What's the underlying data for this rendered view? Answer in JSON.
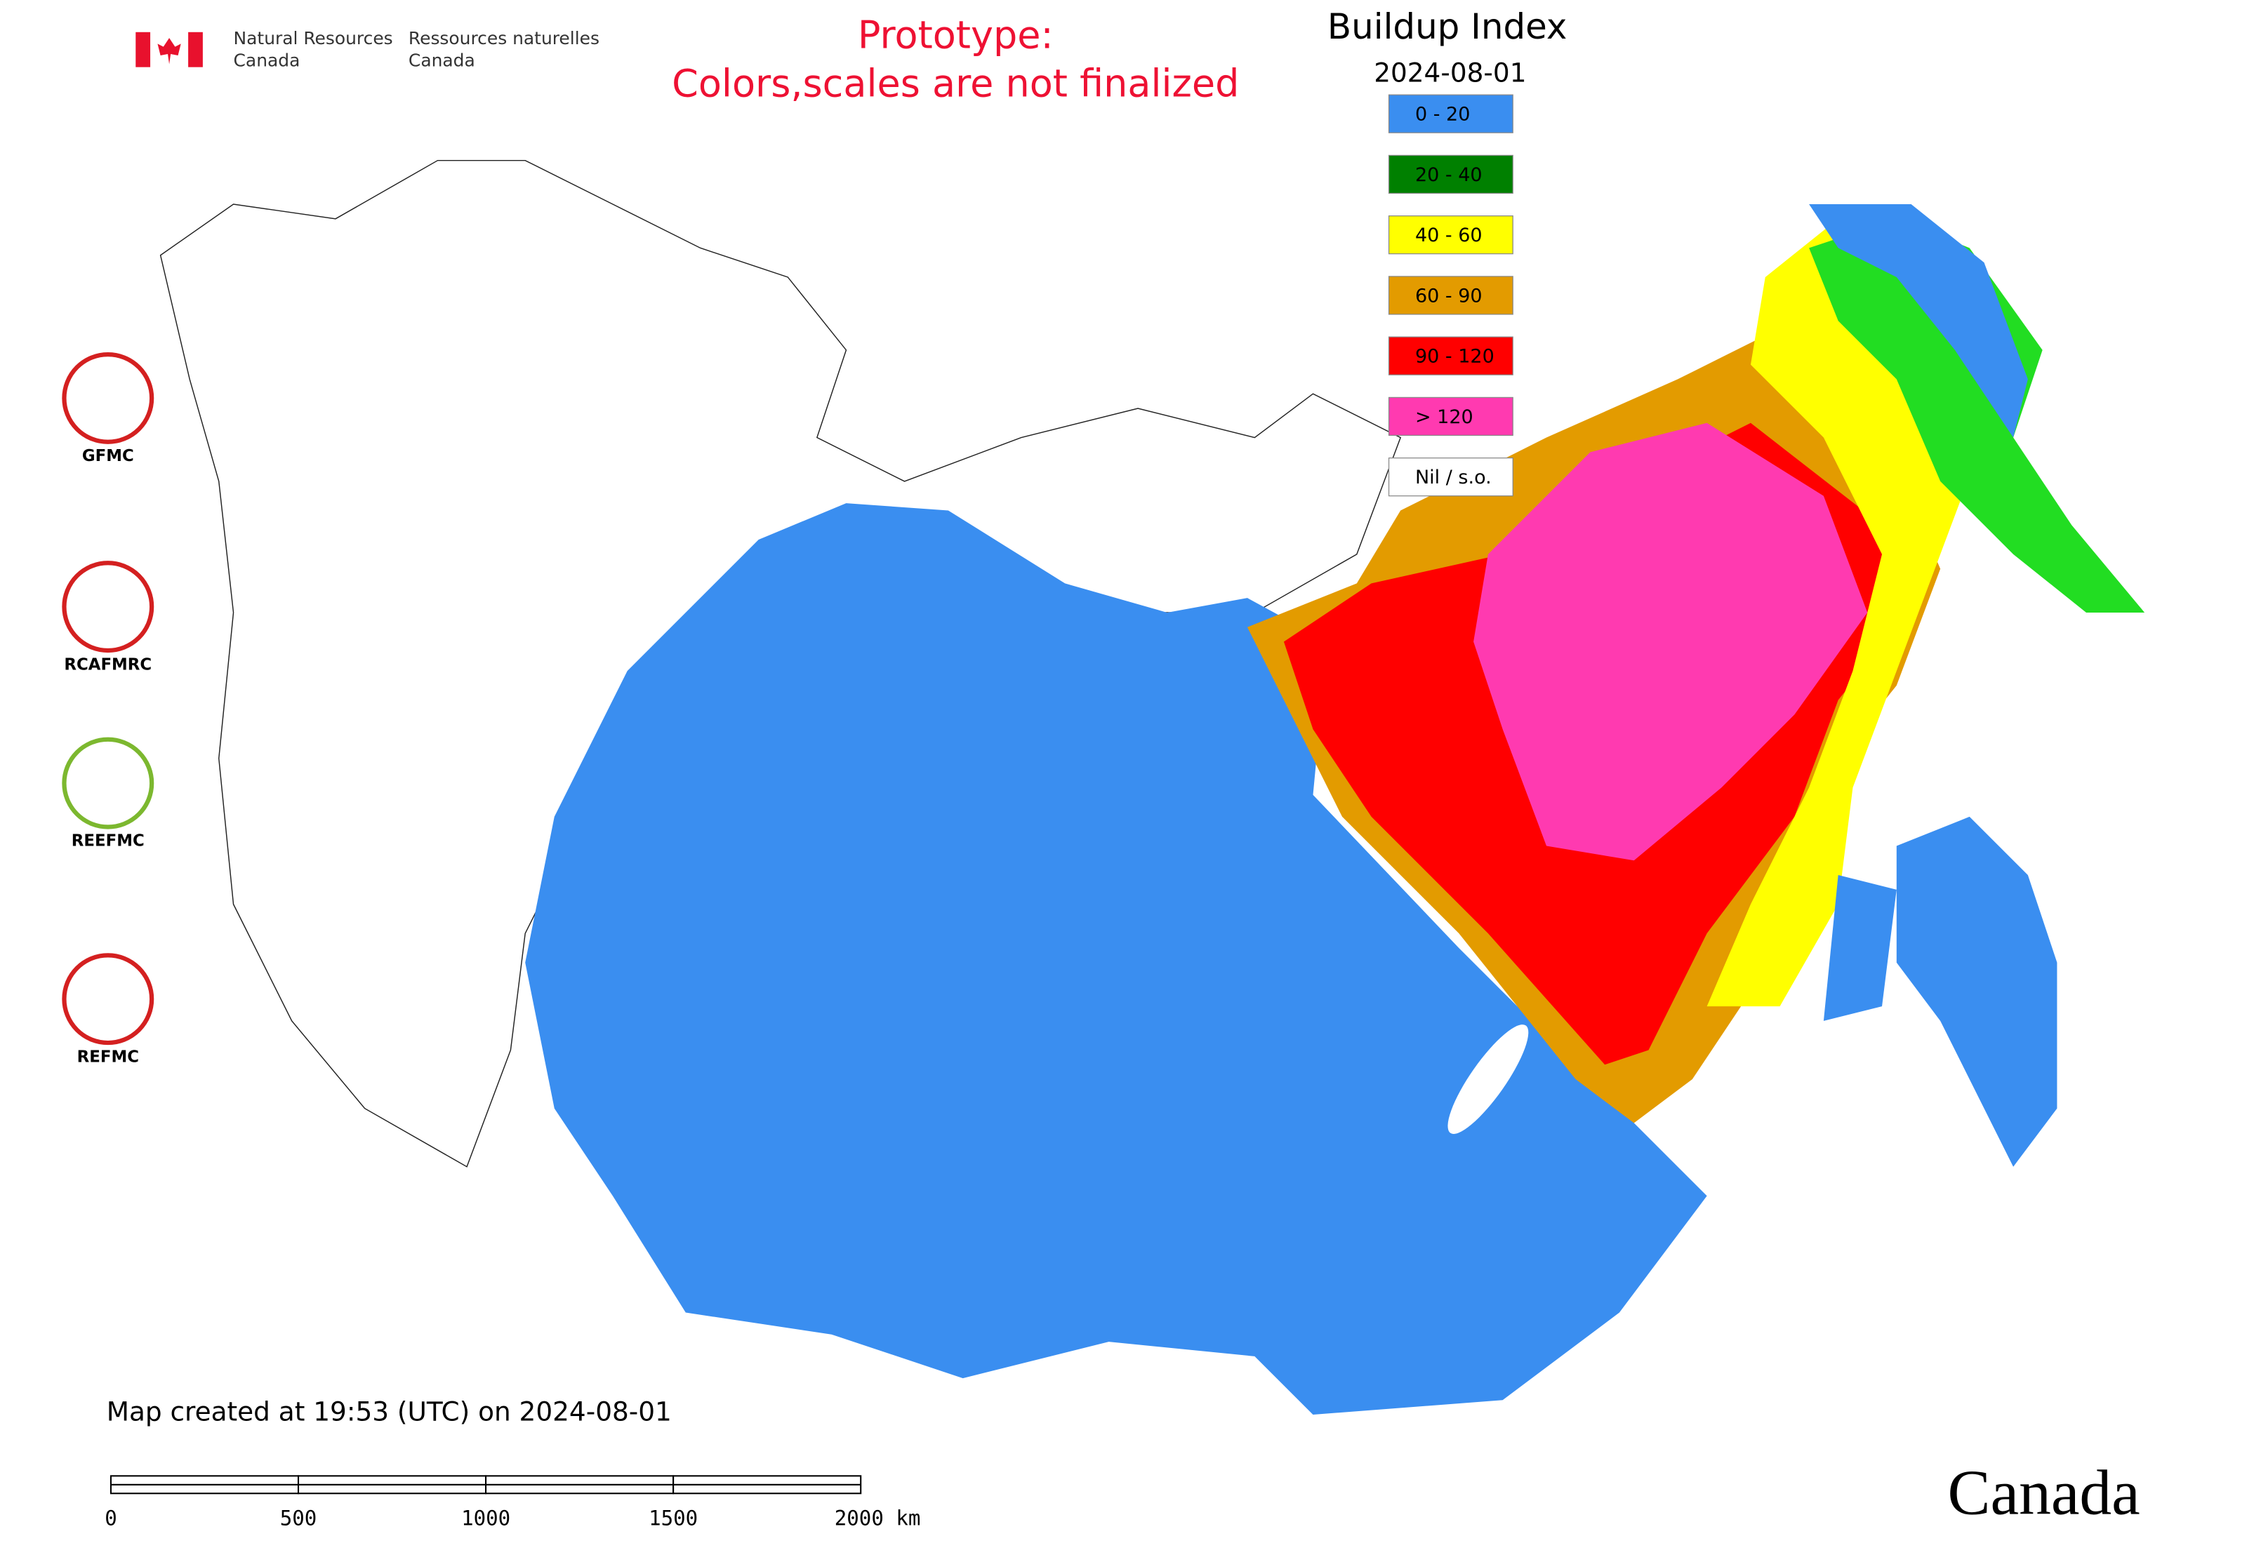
{
  "header": {
    "department_en": [
      "Natural Resources",
      "Canada"
    ],
    "department_fr": [
      "Ressources naturelles",
      "Canada"
    ]
  },
  "notice": [
    "Prototype:",
    "Colors,scales are not finalized"
  ],
  "legend": {
    "title": "Buildup Index",
    "date": "2024-08-01",
    "items": [
      {
        "label": "0 - 20",
        "color": "#3a8ef0"
      },
      {
        "label": "20 - 40",
        "color": "#008000"
      },
      {
        "label": "40 - 60",
        "color": "#ffff00"
      },
      {
        "label": "60 - 90",
        "color": "#e39b00"
      },
      {
        "label": "90 - 120",
        "color": "#ff0000"
      },
      {
        "label": "> 120",
        "color": "#ff3ab0"
      },
      {
        "label": "Nil / s.o.",
        "color": "#ffffff"
      }
    ]
  },
  "logos": [
    "GFMC",
    "RCAFMRC",
    "REEFMC",
    "REFMC"
  ],
  "footer": "Map created at 19:53 (UTC) on 2024-08-01",
  "scale_bar": [
    "0",
    "500",
    "1000",
    "1500",
    "2000 km"
  ],
  "wordmark": "Canada"
}
